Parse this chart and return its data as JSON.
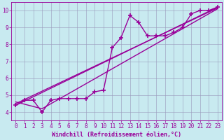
{
  "background_color": "#c8eaf0",
  "plot_bg_color": "#c8eaf0",
  "line_color": "#990099",
  "marker": "+",
  "marker_size": 4,
  "marker_edge_width": 1.2,
  "line_width": 1.0,
  "xlabel": "Windchill (Refroidissement éolien,°C)",
  "xlabel_fontsize": 6.0,
  "tick_fontsize": 5.5,
  "xlim": [
    -0.5,
    23.5
  ],
  "ylim": [
    3.5,
    10.5
  ],
  "yticks": [
    4,
    5,
    6,
    7,
    8,
    9,
    10
  ],
  "xticks": [
    0,
    1,
    2,
    3,
    4,
    5,
    6,
    7,
    8,
    9,
    10,
    11,
    12,
    13,
    14,
    15,
    16,
    17,
    18,
    19,
    20,
    21,
    22,
    23
  ],
  "grid_color": "#9999bb",
  "grid_alpha": 0.8,
  "series_main": {
    "x": [
      0,
      1,
      2,
      3,
      4,
      5,
      6,
      7,
      8,
      9,
      10,
      11,
      12,
      13,
      14,
      15,
      16,
      17,
      18,
      19,
      20,
      21,
      22,
      23
    ],
    "y": [
      4.4,
      4.7,
      4.7,
      4.0,
      4.7,
      4.8,
      4.8,
      4.8,
      4.8,
      5.2,
      5.3,
      7.8,
      8.4,
      9.7,
      9.3,
      8.5,
      8.5,
      8.5,
      8.7,
      9.0,
      9.8,
      10.0,
      10.0,
      10.2
    ]
  },
  "series_lines": [
    {
      "x": [
        0,
        23
      ],
      "y": [
        4.4,
        10.2
      ]
    },
    {
      "x": [
        0,
        3,
        23
      ],
      "y": [
        4.6,
        4.2,
        10.1
      ]
    },
    {
      "x": [
        0,
        23
      ],
      "y": [
        4.5,
        10.15
      ]
    }
  ]
}
